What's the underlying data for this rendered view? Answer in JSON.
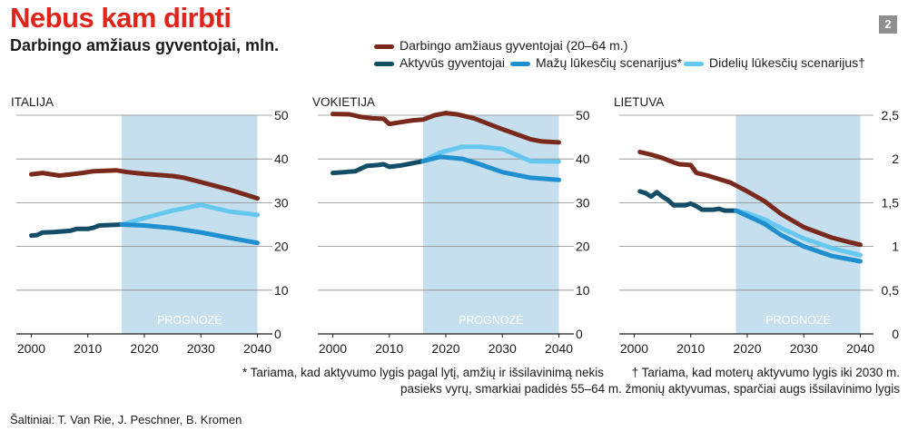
{
  "header": {
    "title": "Nebus kam dirbti",
    "subtitle": "Darbingo amžiaus gyventojai, mln.",
    "badge": "2"
  },
  "legend": {
    "working_age": "Darbingo amžiaus gyventojai (20–64 m.)",
    "active": "Aktyvūs gyventojai",
    "low": "Mažų lūkesčių scenarijus*",
    "high": "Didelių lūkesčių scenarijus†"
  },
  "colors": {
    "working_age": "#7a2a1c",
    "active": "#134e66",
    "low": "#1f8fcf",
    "high": "#66c8ee",
    "forecast_band": "#c6dfee",
    "grid": "#8a8a8a"
  },
  "forecast_label": "PROGNOZĖ",
  "notes": {
    "low_1": "* Tariama, kad aktyvumo lygis pagal lytį, amžių ir išsilavinimą nekis",
    "low_2": "pasieks vyrų, smarkiai padidės 55–64 m. žmonių aktyvumas, sparčiai augs išsilavinimo lygis",
    "high_1": "† Tariama, kad moterų aktyvumo lygis iki 2030 m."
  },
  "source": "Šaltiniai: T. Van Rie, J. Peschner, B. Kromen",
  "chart_data": [
    {
      "type": "line",
      "title": "ITALIJA",
      "xlim": [
        1998,
        2042
      ],
      "ylim": [
        0,
        50
      ],
      "x_ticks": [
        "2000",
        "2010",
        "2020",
        "2030",
        "2040"
      ],
      "y_ticks": [
        "0",
        "10",
        "20",
        "30",
        "40",
        "50"
      ],
      "forecast": [
        2016,
        2040
      ],
      "series": [
        {
          "name": "Darbingo amžiaus gyventojai (20–64 m.)",
          "key": "working_age",
          "points": [
            [
              2000,
              36.5
            ],
            [
              2002,
              36.8
            ],
            [
              2003,
              36.6
            ],
            [
              2005,
              36.2
            ],
            [
              2007,
              36.5
            ],
            [
              2009,
              36.8
            ],
            [
              2011,
              37.2
            ],
            [
              2013,
              37.3
            ],
            [
              2015,
              37.4
            ],
            [
              2017,
              37.0
            ],
            [
              2020,
              36.6
            ],
            [
              2025,
              36.1
            ],
            [
              2027,
              35.7
            ],
            [
              2030,
              34.7
            ],
            [
              2035,
              33.0
            ],
            [
              2040,
              31.0
            ]
          ]
        },
        {
          "name": "Aktyvūs gyventojai",
          "key": "active",
          "points": [
            [
              2000,
              22.5
            ],
            [
              2001,
              22.6
            ],
            [
              2002,
              23.2
            ],
            [
              2004,
              23.3
            ],
            [
              2006,
              23.5
            ],
            [
              2007,
              23.6
            ],
            [
              2008,
              24.0
            ],
            [
              2010,
              24.0
            ],
            [
              2011,
              24.3
            ],
            [
              2012,
              24.8
            ],
            [
              2014,
              24.9
            ],
            [
              2016,
              25.0
            ]
          ]
        },
        {
          "name": "Mažų lūkesčių scenarijus*",
          "key": "low",
          "points": [
            [
              2016,
              25.0
            ],
            [
              2020,
              24.8
            ],
            [
              2025,
              24.2
            ],
            [
              2030,
              23.2
            ],
            [
              2035,
              22.0
            ],
            [
              2040,
              20.8
            ]
          ]
        },
        {
          "name": "Didelių lūkesčių scenarijus†",
          "key": "high",
          "points": [
            [
              2016,
              25.0
            ],
            [
              2020,
              26.5
            ],
            [
              2025,
              28.2
            ],
            [
              2030,
              29.5
            ],
            [
              2035,
              28.0
            ],
            [
              2040,
              27.2
            ]
          ]
        }
      ]
    },
    {
      "type": "line",
      "title": "VOKIETIJA",
      "xlim": [
        1998,
        2042
      ],
      "ylim": [
        0,
        50
      ],
      "x_ticks": [
        "2000",
        "2010",
        "2020",
        "2030",
        "2040"
      ],
      "y_ticks": [
        "0",
        "10",
        "20",
        "30",
        "40",
        "50"
      ],
      "forecast": [
        2016,
        2040
      ],
      "series": [
        {
          "name": "Darbingo amžiaus gyventojai (20–64 m.)",
          "key": "working_age",
          "points": [
            [
              2000,
              50.3
            ],
            [
              2003,
              50.2
            ],
            [
              2005,
              49.6
            ],
            [
              2007,
              49.3
            ],
            [
              2009,
              49.2
            ],
            [
              2010,
              48.0
            ],
            [
              2012,
              48.4
            ],
            [
              2014,
              48.8
            ],
            [
              2016,
              49.0
            ],
            [
              2018,
              50.0
            ],
            [
              2020,
              50.5
            ],
            [
              2022,
              50.2
            ],
            [
              2025,
              49.3
            ],
            [
              2030,
              46.8
            ],
            [
              2035,
              44.5
            ],
            [
              2037,
              44.0
            ],
            [
              2040,
              43.8
            ]
          ]
        },
        {
          "name": "Aktyvūs gyventojai",
          "key": "active",
          "points": [
            [
              2000,
              36.8
            ],
            [
              2002,
              37.0
            ],
            [
              2004,
              37.2
            ],
            [
              2006,
              38.4
            ],
            [
              2008,
              38.6
            ],
            [
              2009,
              38.8
            ],
            [
              2010,
              38.2
            ],
            [
              2012,
              38.5
            ],
            [
              2014,
              39.0
            ],
            [
              2016,
              39.5
            ]
          ]
        },
        {
          "name": "Mažų lūkesčių scenarijus*",
          "key": "low",
          "points": [
            [
              2016,
              39.5
            ],
            [
              2019,
              40.5
            ],
            [
              2023,
              40.0
            ],
            [
              2026,
              38.8
            ],
            [
              2030,
              37.0
            ],
            [
              2035,
              35.7
            ],
            [
              2040,
              35.2
            ]
          ]
        },
        {
          "name": "Didelių lūkesčių scenarijus†",
          "key": "high",
          "points": [
            [
              2016,
              39.5
            ],
            [
              2019,
              41.5
            ],
            [
              2023,
              42.8
            ],
            [
              2026,
              42.8
            ],
            [
              2030,
              42.3
            ],
            [
              2035,
              39.5
            ],
            [
              2040,
              39.4
            ]
          ]
        }
      ]
    },
    {
      "type": "line",
      "title": "LIETUVA",
      "xlim": [
        1998,
        2042
      ],
      "ylim": [
        0,
        2.5
      ],
      "x_ticks": [
        "2000",
        "2010",
        "2020",
        "2030",
        "2040"
      ],
      "y_ticks": [
        "0",
        "0,5",
        "1",
        "1,5",
        "2",
        "2,5"
      ],
      "forecast": [
        2018,
        2040
      ],
      "series": [
        {
          "name": "Darbingo amžiaus gyventojai (20–64 m.)",
          "key": "working_age",
          "points": [
            [
              2001,
              2.08
            ],
            [
              2003,
              2.05
            ],
            [
              2005,
              2.01
            ],
            [
              2007,
              1.96
            ],
            [
              2008,
              1.94
            ],
            [
              2010,
              1.93
            ],
            [
              2011,
              1.84
            ],
            [
              2013,
              1.81
            ],
            [
              2015,
              1.77
            ],
            [
              2017,
              1.73
            ],
            [
              2020,
              1.63
            ],
            [
              2023,
              1.52
            ],
            [
              2026,
              1.37
            ],
            [
              2030,
              1.22
            ],
            [
              2035,
              1.1
            ],
            [
              2038,
              1.05
            ],
            [
              2040,
              1.02
            ]
          ]
        },
        {
          "name": "Aktyvūs gyventojai",
          "key": "active",
          "points": [
            [
              2001,
              1.63
            ],
            [
              2002,
              1.61
            ],
            [
              2003,
              1.57
            ],
            [
              2004,
              1.62
            ],
            [
              2005,
              1.57
            ],
            [
              2006,
              1.53
            ],
            [
              2007,
              1.47
            ],
            [
              2009,
              1.47
            ],
            [
              2010,
              1.49
            ],
            [
              2011,
              1.46
            ],
            [
              2012,
              1.42
            ],
            [
              2014,
              1.42
            ],
            [
              2015,
              1.43
            ],
            [
              2016,
              1.41
            ],
            [
              2018,
              1.41
            ]
          ]
        },
        {
          "name": "Mažų lūkesčių scenarijus*",
          "key": "low",
          "points": [
            [
              2018,
              1.41
            ],
            [
              2020,
              1.35
            ],
            [
              2023,
              1.26
            ],
            [
              2026,
              1.13
            ],
            [
              2030,
              1.0
            ],
            [
              2035,
              0.89
            ],
            [
              2040,
              0.83
            ]
          ]
        },
        {
          "name": "Didelių lūkesčių scenarijus†",
          "key": "high",
          "points": [
            [
              2018,
              1.41
            ],
            [
              2020,
              1.38
            ],
            [
              2023,
              1.31
            ],
            [
              2026,
              1.21
            ],
            [
              2030,
              1.09
            ],
            [
              2035,
              0.98
            ],
            [
              2040,
              0.9
            ]
          ]
        }
      ]
    }
  ]
}
